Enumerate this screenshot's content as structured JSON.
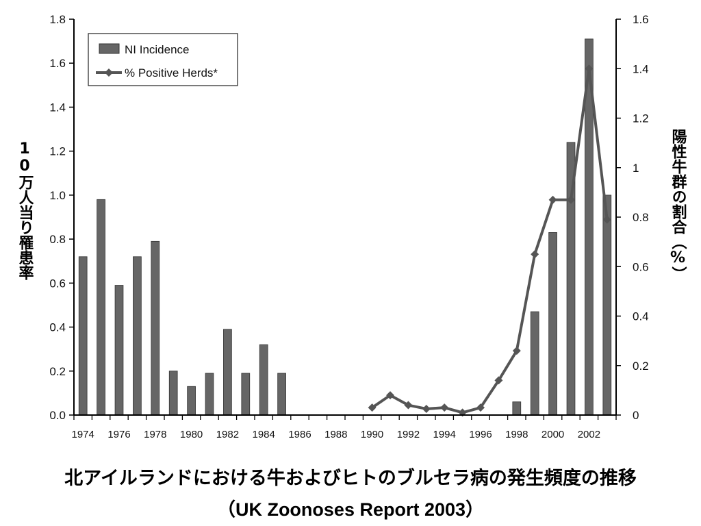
{
  "chart_data": {
    "type": "bar",
    "title": "北アイルランドにおける牛およびヒトのブルセラ病の発生頻度の推移",
    "subtitle": "（UK Zoonoses Report 2003）",
    "ylabel": "10万人当り罹患率",
    "y2label": "陽性牛群の割合（%）",
    "ylim": [
      0,
      1.8
    ],
    "y2lim": [
      0,
      1.6
    ],
    "yticks": [
      "0.0",
      "0.2",
      "0.4",
      "0.6",
      "0.8",
      "1.0",
      "1.2",
      "1.4",
      "1.6",
      "1.8"
    ],
    "y2ticks": [
      "0",
      "0.2",
      "0.4",
      "0.6",
      "0.8",
      "1",
      "1.2",
      "1.4",
      "1.6"
    ],
    "categories": [
      "1974",
      "1975",
      "1976",
      "1977",
      "1978",
      "1979",
      "1980",
      "1981",
      "1982",
      "1983",
      "1984",
      "1985",
      "1986",
      "1987",
      "1988",
      "1989",
      "1990",
      "1991",
      "1992",
      "1993",
      "1994",
      "1995",
      "1996",
      "1997",
      "1998",
      "1999",
      "2000",
      "2001",
      "2002",
      "2003"
    ],
    "xtick_labels": [
      "1974",
      "1976",
      "1978",
      "1980",
      "1982",
      "1984",
      "1986",
      "1988",
      "1990",
      "1992",
      "1994",
      "1996",
      "1998",
      "2000",
      "2002"
    ],
    "legend_position": "top-left",
    "series": [
      {
        "name": "NI Incidence",
        "type": "bar",
        "axis": "left",
        "color": "#666666",
        "values": [
          0.72,
          0.98,
          0.59,
          0.72,
          0.79,
          0.2,
          0.13,
          0.19,
          0.39,
          0.19,
          0.32,
          0.19,
          null,
          null,
          null,
          null,
          null,
          null,
          null,
          null,
          null,
          null,
          null,
          null,
          0.06,
          0.47,
          0.83,
          1.24,
          1.71,
          1.0
        ]
      },
      {
        "name": "% Positive Herds*",
        "type": "line",
        "axis": "right",
        "color": "#555555",
        "values": [
          null,
          null,
          null,
          null,
          null,
          null,
          null,
          null,
          null,
          null,
          null,
          null,
          null,
          null,
          null,
          null,
          0.03,
          0.08,
          0.04,
          0.025,
          0.03,
          0.01,
          0.03,
          0.14,
          0.26,
          0.65,
          0.87,
          0.87,
          1.4,
          0.79
        ]
      }
    ]
  }
}
